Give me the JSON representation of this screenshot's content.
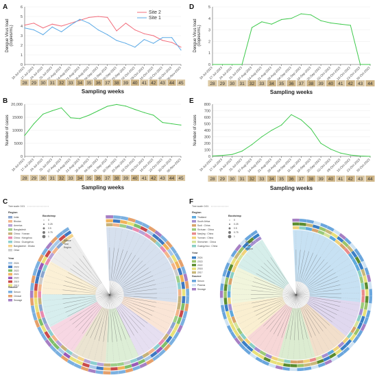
{
  "panel_letters": {
    "A": "A",
    "B": "B",
    "C": "C",
    "D": "D",
    "E": "E",
    "F": "F"
  },
  "colors": {
    "site2": "#f26b7a",
    "site1": "#5aa9e6",
    "cases": "#3cc94a",
    "week_bg": "#dcc9a5",
    "week_hl": "#cfb688"
  },
  "chart_data": [
    {
      "panel": "A",
      "type": "line",
      "ylabel": "Dengue Virus load",
      "ylabel2": "(copies/mL)",
      "xlabel": "Sampling weeks",
      "ylim": [
        0,
        6
      ],
      "yticks": [
        0,
        1,
        2,
        3,
        4,
        5,
        6
      ],
      "x": [
        "10-Jul-2023",
        "17-Jul-2023",
        "24-Jul-2023",
        "31-Jul-2023",
        "07-Aug-2023",
        "14-Aug-2023",
        "21-Aug-2023",
        "28-Aug-2023",
        "04-Sep-2023",
        "11-Sep-2023",
        "18-Sep-2023",
        "25-Sep-2023",
        "02-Oct-2023",
        "09-Oct-2023",
        "16-Oct-2023",
        "23-Oct-2023",
        "30-Oct-2023",
        "06-Nov-2023"
      ],
      "weeks": [
        "28",
        "29",
        "30",
        "31",
        "32",
        "33",
        "34",
        "35",
        "36",
        "37",
        "38",
        "39",
        "40",
        "41",
        "42",
        "43",
        "44",
        "45"
      ],
      "legend": [
        "Site 2",
        "Site 1"
      ],
      "series": [
        {
          "name": "Site 2",
          "values": [
            4.1,
            4.3,
            3.8,
            4.2,
            4.0,
            4.3,
            4.6,
            4.9,
            5.0,
            4.9,
            3.5,
            4.3,
            3.6,
            3.2,
            3.0,
            2.5,
            2.3,
            1.8
          ]
        },
        {
          "name": "Site 1",
          "values": [
            3.8,
            3.6,
            3.1,
            3.9,
            3.4,
            4.1,
            4.7,
            4.3,
            3.6,
            3.1,
            2.5,
            2.2,
            1.8,
            2.6,
            2.2,
            2.8,
            2.8,
            1.5
          ]
        }
      ]
    },
    {
      "panel": "B",
      "type": "line",
      "ylabel": "Number of cases",
      "xlabel": "Sampling weeks",
      "ylim": [
        0,
        20000
      ],
      "yticks": [
        0,
        5000,
        10000,
        15000,
        20000
      ],
      "ytick_labels": [
        "0",
        "5000",
        "10000",
        "15000",
        "20,000"
      ],
      "x": [
        "10-Jul-2023",
        "17-Jul-2023",
        "24-Jul-2023",
        "31-Jul-2023",
        "07-Aug-2023",
        "14-Aug-2023",
        "21-Aug-2023",
        "28-Aug-2023",
        "04-Sep-2023",
        "11-Sep-2023",
        "18-Sep-2023",
        "25-Sep-2023",
        "02-Oct-2023",
        "09-Oct-2023",
        "16-Oct-2023",
        "23-Oct-2023",
        "30-Oct-2023",
        "06-Nov-2023"
      ],
      "weeks": [
        "28",
        "29",
        "30",
        "31",
        "32",
        "33",
        "34",
        "35",
        "36",
        "37",
        "38",
        "39",
        "40",
        "41",
        "42",
        "43",
        "44",
        "45"
      ],
      "series": [
        {
          "name": "Cases",
          "values": [
            8000,
            12500,
            16200,
            17500,
            18600,
            14800,
            14500,
            15800,
            17500,
            19200,
            19900,
            19300,
            18000,
            16800,
            15800,
            13000,
            12500,
            12000
          ]
        }
      ]
    },
    {
      "panel": "D",
      "type": "line",
      "ylabel": "Dengue Virus load",
      "ylabel2": "(copies/mL)",
      "xlabel": "Sampling weeks",
      "ylim": [
        0,
        5
      ],
      "yticks": [
        0,
        1,
        2,
        3,
        4,
        5
      ],
      "x": [
        "10-Jul-2023",
        "17-Jul-2023",
        "24-Jul-2023",
        "31-Jul-2023",
        "07-Aug-2023",
        "14-Aug-2023",
        "21-Aug-2023",
        "28-Aug-2023",
        "04-Sep-2023",
        "11-Sep-2023",
        "18-Sep-2023",
        "25-Sep-2023",
        "02-Oct-2023",
        "09-Oct-2023",
        "16-Oct-2023",
        "23-Oct-2023",
        "30-Oct-2023"
      ],
      "weeks": [
        "28",
        "29",
        "30",
        "31",
        "32",
        "33",
        "34",
        "35",
        "36",
        "37",
        "38",
        "39",
        "40",
        "41",
        "42",
        "43",
        "44"
      ],
      "series": [
        {
          "name": "Site",
          "values": [
            0,
            0,
            0,
            0,
            3.2,
            3.7,
            3.5,
            3.9,
            4.0,
            4.4,
            4.3,
            3.8,
            3.6,
            3.5,
            3.4,
            0,
            0
          ]
        }
      ]
    },
    {
      "panel": "E",
      "type": "line",
      "ylabel": "Number of cases",
      "xlabel": "Sampling weeks",
      "ylim": [
        0,
        800
      ],
      "yticks": [
        0,
        100,
        200,
        300,
        400,
        500,
        600,
        700,
        800
      ],
      "x": [
        "10-Jul-2023",
        "17-Jul-2023",
        "24-Jul-2023",
        "31-Jul-2023",
        "07-Aug-2023",
        "14-Aug-2023",
        "21-Aug-2023",
        "28-Aug-2023",
        "04-Sep-2023",
        "11-Sep-2023",
        "18-Sep-2023",
        "25-Sep-2023",
        "02-Oct-2023",
        "09-Oct-2023",
        "16-Oct-2023",
        "23-Oct-2023",
        "30-Oct-2023"
      ],
      "weeks": [
        "28",
        "29",
        "30",
        "31",
        "32",
        "33",
        "34",
        "35",
        "36",
        "37",
        "38",
        "39",
        "40",
        "41",
        "42",
        "43",
        "44"
      ],
      "series": [
        {
          "name": "Cases",
          "values": [
            5,
            15,
            30,
            80,
            180,
            300,
            400,
            480,
            640,
            560,
            420,
            200,
            110,
            50,
            20,
            5,
            0
          ]
        }
      ]
    }
  ],
  "tree_C": {
    "scale": "Tree scale: 0.01",
    "region_title": "Region",
    "regions": [
      "India",
      "Bhutan",
      "America",
      "Bangladesh",
      "China : Yunnan",
      "China : Hangzhou",
      "China : Guangzhou",
      "Bangladesh : Dhaka",
      "Other"
    ],
    "region_colors": [
      "#8aa6cf",
      "#f2b48a",
      "#b7a2d6",
      "#9ecf8a",
      "#c7b27a",
      "#e98bb0",
      "#8ccfcf",
      "#f3d38a",
      "#cccccc"
    ],
    "bootstrap_title": "Bootstrap",
    "bootstrap": [
      "0",
      "0.25",
      "0.5",
      "0.75",
      "1"
    ],
    "year_title": "Year",
    "years": [
      "2024",
      "2023",
      "2022",
      "2021",
      "2020",
      "2019",
      "2013"
    ],
    "year_colors": [
      "#a8c8e8",
      "#3f79c2",
      "#7fbf6a",
      "#f1b35a",
      "#9a5ab8",
      "#c94b4b",
      "#e9e27a"
    ],
    "source_title": "Source",
    "sources": [
      "Serum",
      "Clinical",
      "Sewage"
    ],
    "source_colors": [
      "#7bb0e0",
      "#e5a06b",
      "#a67fc4"
    ],
    "ring_labels": [
      "Source",
      "Year",
      "Region"
    ]
  },
  "tree_F": {
    "scale": "Tree scale: 0.01",
    "region_title": "Region",
    "regions": [
      "Thailand",
      "South Africa",
      "Sudi : China",
      "Sichuan : China",
      "Nanjing : China",
      "Yunnan : China",
      "Shenzhen : China",
      "Guangzhou : China"
    ],
    "region_colors": [
      "#5ea9dd",
      "#a58fd0",
      "#d9a36b",
      "#9bc97a",
      "#e98b8b",
      "#f0d27a",
      "#d6e39a",
      "#8acfc4"
    ],
    "bootstrap_title": "Bootstrap",
    "bootstrap": [
      "0",
      "0.25",
      "0.5",
      "0.75",
      "1"
    ],
    "year_title": "Year",
    "years": [
      "2024",
      "2023",
      "2022",
      "2018",
      "2017"
    ],
    "year_colors": [
      "#3b7fc4",
      "#9bc46a",
      "#5b8c2f",
      "#e8e07a",
      "#c9b87a"
    ],
    "source_title": "Source",
    "sources": [
      "Serum",
      "Plasma",
      "Sewage"
    ],
    "source_colors": [
      "#6aa6dd",
      "#cfe3f3",
      "#a67fc4"
    ],
    "ring_labels": [
      "Source",
      "Year",
      "Region"
    ]
  }
}
